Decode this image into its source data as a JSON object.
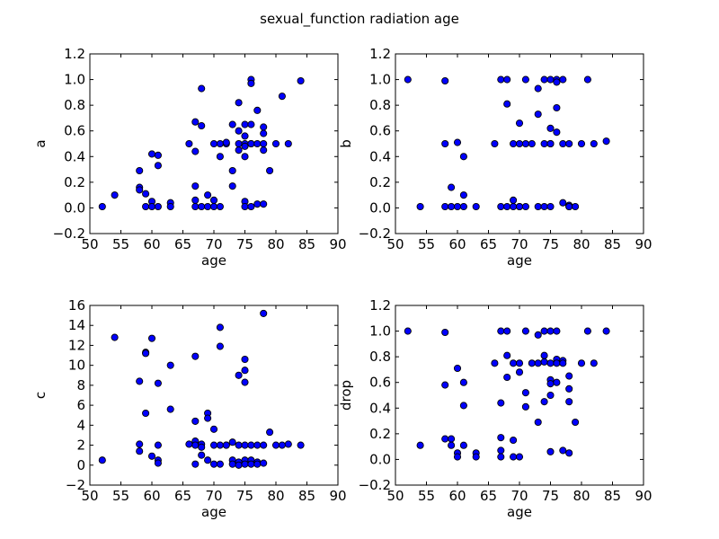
{
  "figure": {
    "suptitle": "sexual_function radiation age"
  },
  "style": {
    "marker_fill": "#0000ff",
    "marker_edge": "#000000",
    "axes_edge": "#000000",
    "background": "#ffffff"
  },
  "chart_data": [
    {
      "type": "scatter",
      "title": "",
      "xlabel": "age",
      "ylabel": "a",
      "xlim": [
        50,
        90
      ],
      "ylim": [
        -0.2,
        1.2
      ],
      "xticks": [
        50,
        55,
        60,
        65,
        70,
        75,
        80,
        85,
        90
      ],
      "yticks": [
        -0.2,
        0.0,
        0.2,
        0.4,
        0.6,
        0.8,
        1.0,
        1.2
      ],
      "ytick_labels": [
        "−0.2",
        "0.0",
        "0.2",
        "0.4",
        "0.6",
        "0.8",
        "1.0",
        "1.2"
      ],
      "grid": false,
      "x": [
        52,
        54,
        58,
        58,
        58,
        59,
        59,
        60,
        60,
        60,
        61,
        61,
        61,
        63,
        63,
        66,
        67,
        67,
        67,
        67,
        67,
        68,
        68,
        68,
        69,
        69,
        70,
        70,
        70,
        71,
        71,
        71,
        72,
        72,
        73,
        73,
        73,
        74,
        74,
        74,
        74,
        75,
        75,
        75,
        75,
        75,
        75,
        75,
        76,
        76,
        76,
        76,
        76,
        76,
        77,
        77,
        77,
        78,
        78,
        78,
        78,
        78,
        79,
        80,
        81,
        82,
        84
      ],
      "y": [
        0.01,
        0.1,
        0.29,
        0.16,
        0.14,
        0.11,
        0.01,
        0.42,
        0.05,
        0.01,
        0.41,
        0.33,
        0.01,
        0.04,
        0.01,
        0.5,
        0.67,
        0.44,
        0.17,
        0.06,
        0.01,
        0.93,
        0.64,
        0.01,
        0.1,
        0.01,
        0.5,
        0.06,
        0.01,
        0.5,
        0.4,
        0.01,
        0.5,
        0.51,
        0.65,
        0.29,
        0.17,
        0.82,
        0.6,
        0.5,
        0.45,
        0.65,
        0.56,
        0.5,
        0.48,
        0.4,
        0.05,
        0.01,
        1.0,
        0.97,
        0.65,
        0.5,
        0.5,
        0.01,
        0.76,
        0.5,
        0.03,
        0.63,
        0.58,
        0.5,
        0.45,
        0.03,
        0.29,
        0.5,
        0.87,
        0.5,
        0.99
      ]
    },
    {
      "type": "scatter",
      "title": "",
      "xlabel": "age",
      "ylabel": "b",
      "xlim": [
        50,
        90
      ],
      "ylim": [
        -0.2,
        1.2
      ],
      "xticks": [
        50,
        55,
        60,
        65,
        70,
        75,
        80,
        85,
        90
      ],
      "yticks": [
        -0.2,
        0.0,
        0.2,
        0.4,
        0.6,
        0.8,
        1.0,
        1.2
      ],
      "ytick_labels": [
        "−0.2",
        "0.0",
        "0.2",
        "0.4",
        "0.6",
        "0.8",
        "1.0",
        "1.2"
      ],
      "grid": false,
      "x": [
        52,
        54,
        58,
        58,
        58,
        59,
        59,
        60,
        60,
        61,
        61,
        61,
        63,
        66,
        67,
        67,
        68,
        68,
        68,
        69,
        69,
        69,
        70,
        70,
        70,
        70,
        71,
        71,
        71,
        72,
        73,
        73,
        73,
        74,
        74,
        74,
        75,
        75,
        75,
        75,
        75,
        76,
        76,
        76,
        76,
        77,
        77,
        77,
        78,
        78,
        78,
        78,
        79,
        80,
        81,
        82,
        84
      ],
      "y": [
        1.0,
        0.01,
        0.99,
        0.5,
        0.01,
        0.16,
        0.01,
        0.51,
        0.01,
        0.4,
        0.1,
        0.01,
        0.01,
        0.5,
        1.0,
        0.01,
        1.0,
        0.81,
        0.01,
        0.5,
        0.06,
        0.01,
        0.66,
        0.5,
        0.01,
        0.01,
        1.0,
        0.5,
        0.01,
        0.5,
        0.93,
        0.73,
        0.01,
        1.0,
        0.5,
        0.01,
        1.0,
        0.62,
        0.5,
        0.5,
        0.01,
        1.0,
        0.98,
        0.78,
        0.59,
        1.0,
        0.5,
        0.04,
        0.5,
        0.02,
        0.01,
        0.01,
        0.01,
        0.5,
        1.0,
        0.5,
        0.52
      ]
    },
    {
      "type": "scatter",
      "title": "",
      "xlabel": "age",
      "ylabel": "c",
      "xlim": [
        50,
        90
      ],
      "ylim": [
        -2,
        16
      ],
      "xticks": [
        50,
        55,
        60,
        65,
        70,
        75,
        80,
        85,
        90
      ],
      "yticks": [
        -2,
        0,
        2,
        4,
        6,
        8,
        10,
        12,
        14,
        16
      ],
      "ytick_labels": [
        "−2",
        "0",
        "2",
        "4",
        "6",
        "8",
        "10",
        "12",
        "14",
        "16"
      ],
      "grid": false,
      "x": [
        52,
        54,
        58,
        58,
        58,
        59,
        59,
        59,
        60,
        60,
        61,
        61,
        61,
        61,
        63,
        63,
        66,
        67,
        67,
        67,
        67,
        67,
        68,
        68,
        68,
        69,
        69,
        69,
        70,
        70,
        70,
        71,
        71,
        71,
        71,
        72,
        72,
        73,
        73,
        73,
        74,
        74,
        74,
        74,
        75,
        75,
        75,
        75,
        75,
        75,
        76,
        76,
        76,
        77,
        77,
        77,
        78,
        78,
        78,
        79,
        80,
        81,
        82,
        84
      ],
      "y": [
        0.5,
        12.8,
        8.4,
        2.1,
        1.4,
        11.3,
        11.2,
        5.2,
        12.7,
        0.9,
        8.2,
        2.0,
        0.5,
        0.2,
        10.0,
        5.6,
        2.1,
        10.9,
        4.4,
        2.4,
        2.0,
        0.1,
        2.1,
        1.8,
        1.0,
        5.2,
        4.7,
        0.5,
        3.6,
        2.0,
        0.1,
        13.8,
        11.9,
        2.0,
        0.1,
        2.0,
        2.0,
        2.3,
        0.5,
        0.1,
        9.0,
        2.0,
        0.3,
        0.0,
        10.6,
        9.5,
        8.3,
        2.0,
        0.5,
        0.1,
        2.0,
        0.5,
        0.1,
        2.0,
        0.3,
        0.1,
        15.2,
        2.0,
        0.2,
        3.3,
        2.0,
        2.0,
        2.1,
        2.0
      ]
    },
    {
      "type": "scatter",
      "title": "",
      "xlabel": "age",
      "ylabel": "drop",
      "xlim": [
        50,
        90
      ],
      "ylim": [
        -0.2,
        1.2
      ],
      "xticks": [
        50,
        55,
        60,
        65,
        70,
        75,
        80,
        85,
        90
      ],
      "yticks": [
        -0.2,
        0.0,
        0.2,
        0.4,
        0.6,
        0.8,
        1.0,
        1.2
      ],
      "ytick_labels": [
        "−0.2",
        "0.0",
        "0.2",
        "0.4",
        "0.6",
        "0.8",
        "1.0",
        "1.2"
      ],
      "grid": false,
      "x": [
        52,
        54,
        58,
        58,
        58,
        59,
        59,
        60,
        60,
        60,
        61,
        61,
        61,
        63,
        63,
        66,
        67,
        67,
        67,
        67,
        67,
        68,
        68,
        68,
        69,
        69,
        69,
        70,
        70,
        70,
        71,
        71,
        71,
        72,
        73,
        73,
        73,
        74,
        74,
        74,
        74,
        75,
        75,
        75,
        75,
        75,
        75,
        76,
        76,
        76,
        76,
        77,
        77,
        77,
        78,
        78,
        78,
        78,
        79,
        80,
        81,
        82,
        84
      ],
      "y": [
        1.0,
        0.11,
        0.99,
        0.58,
        0.16,
        0.16,
        0.11,
        0.71,
        0.05,
        0.02,
        0.6,
        0.42,
        0.11,
        0.05,
        0.02,
        0.75,
        1.0,
        0.44,
        0.17,
        0.07,
        0.02,
        1.0,
        0.81,
        0.64,
        0.75,
        0.15,
        0.02,
        0.75,
        0.68,
        0.02,
        1.0,
        0.52,
        0.41,
        0.75,
        0.97,
        0.75,
        0.29,
        1.0,
        0.81,
        0.76,
        0.45,
        1.0,
        0.75,
        0.62,
        0.59,
        0.5,
        0.06,
        1.0,
        0.78,
        0.75,
        0.6,
        0.77,
        0.75,
        0.07,
        0.65,
        0.55,
        0.45,
        0.05,
        0.29,
        0.75,
        1.0,
        0.75,
        1.0
      ]
    }
  ]
}
